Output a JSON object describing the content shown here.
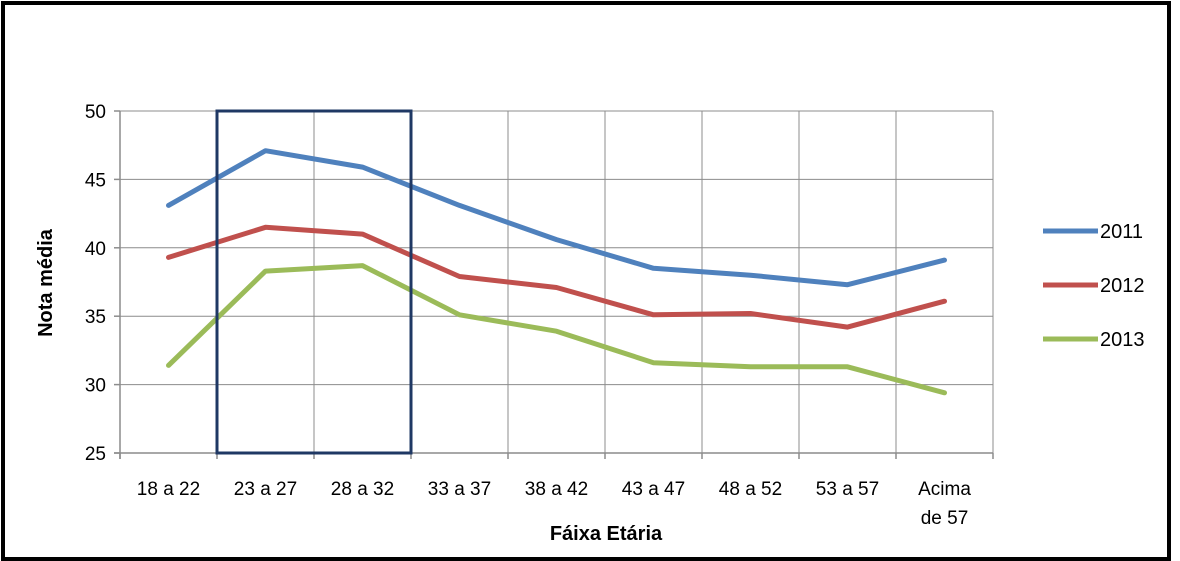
{
  "chart_data": {
    "type": "line",
    "xlabel": "Fáixa Etária",
    "ylabel": "Nota média",
    "ylim": [
      25,
      50
    ],
    "yticks": [
      25,
      30,
      35,
      40,
      45,
      50
    ],
    "grid": true,
    "legend_position": "right",
    "categories": [
      [
        "18 a 22"
      ],
      [
        "23 a 27"
      ],
      [
        "28 a 32"
      ],
      [
        "33 a 37"
      ],
      [
        "38 a 42"
      ],
      [
        "43 a 47"
      ],
      [
        "48 a 52"
      ],
      [
        "53 a 57"
      ],
      [
        "Acima",
        "de 57"
      ]
    ],
    "series": [
      {
        "name": "2011",
        "color": "#4F81BD",
        "values": [
          43.1,
          47.1,
          45.9,
          43.1,
          40.6,
          38.5,
          38.0,
          37.3,
          39.1
        ]
      },
      {
        "name": "2012",
        "color": "#C0504D",
        "values": [
          39.3,
          41.5,
          41.0,
          37.9,
          37.1,
          35.1,
          35.2,
          34.2,
          36.1
        ]
      },
      {
        "name": "2013",
        "color": "#9BBB59",
        "values": [
          31.4,
          38.3,
          38.7,
          35.1,
          33.9,
          31.6,
          31.3,
          31.3,
          29.4
        ]
      }
    ],
    "highlight": {
      "from_category": 1,
      "to_category": 2,
      "color": "#1F3864"
    }
  }
}
